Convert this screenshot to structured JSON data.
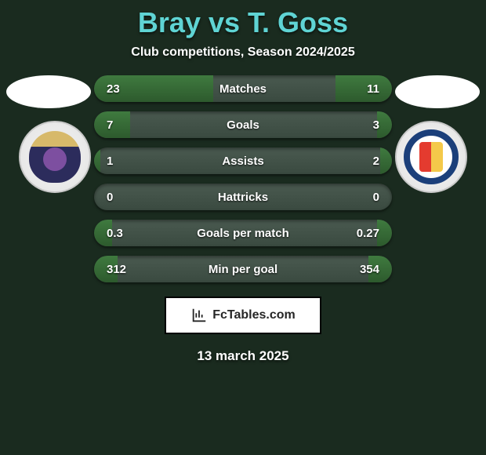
{
  "background_color": "#1a2b1f",
  "title": {
    "text": "Bray vs T. Goss",
    "color": "#5fd4d4",
    "fontsize": 36
  },
  "subtitle": {
    "text": "Club competitions, Season 2024/2025",
    "color": "#ffffff",
    "fontsize": 16
  },
  "date": "13 march 2025",
  "footer": {
    "label": "FcTables.com"
  },
  "bar_style": {
    "track_gradient": [
      "#4a5a50",
      "#3a4a40"
    ],
    "fill_gradient": [
      "#3f7a3f",
      "#2d5a2d"
    ],
    "height": 34,
    "radius": 17,
    "label_color": "#ffffff",
    "fontsize": 15
  },
  "stats": [
    {
      "label": "Matches",
      "left_val": "23",
      "right_val": "11",
      "left_pct": 40,
      "right_pct": 19
    },
    {
      "label": "Goals",
      "left_val": "7",
      "right_val": "3",
      "left_pct": 12,
      "right_pct": 5
    },
    {
      "label": "Assists",
      "left_val": "1",
      "right_val": "2",
      "left_pct": 2,
      "right_pct": 4
    },
    {
      "label": "Hattricks",
      "left_val": "0",
      "right_val": "0",
      "left_pct": 0,
      "right_pct": 0
    },
    {
      "label": "Goals per match",
      "left_val": "0.3",
      "right_val": "0.27",
      "left_pct": 6,
      "right_pct": 5
    },
    {
      "label": "Min per goal",
      "left_val": "312",
      "right_val": "354",
      "left_pct": 8,
      "right_pct": 8
    }
  ]
}
